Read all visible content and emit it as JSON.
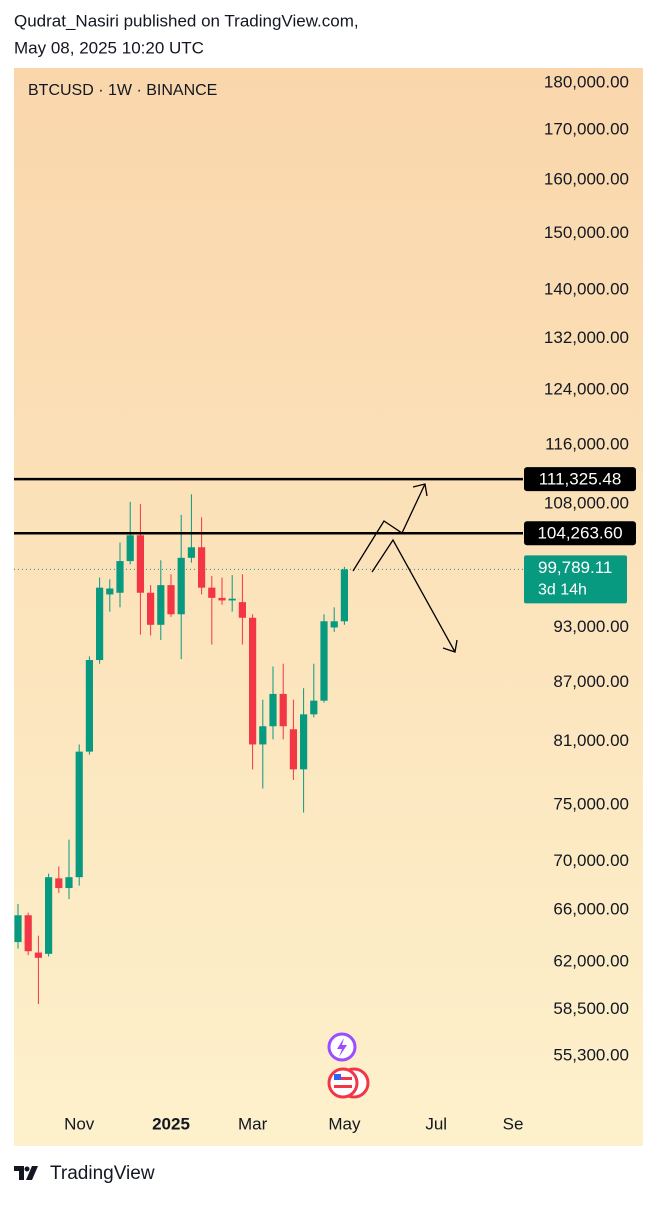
{
  "header": {
    "author_line": "Qudrat_Nasiri published on TradingView.com,",
    "date_line": "May 08, 2025 10:20 UTC"
  },
  "chart_data": {
    "type": "candlestick",
    "title": "BTCUSD · 1W · BINANCE",
    "categories": [
      null,
      null,
      null,
      null,
      null,
      null,
      "Nov",
      null,
      null,
      null,
      null,
      null,
      null,
      null,
      null,
      "2025",
      null,
      null,
      null,
      null,
      null,
      null,
      null,
      "Mar",
      null,
      null,
      null,
      null,
      null,
      null,
      null,
      null,
      "May",
      null,
      null,
      null,
      null,
      null,
      null,
      null,
      null,
      "Jul",
      null,
      null,
      null,
      null,
      null,
      null,
      null,
      "Sep"
    ],
    "open": [
      63500,
      65600,
      62700,
      62600,
      68600,
      67800,
      68700,
      80000,
      89400,
      96800,
      97000,
      100800,
      104000,
      97000,
      93300,
      97900,
      94500,
      101200,
      102500,
      97600,
      96400,
      96100,
      95900,
      94100,
      80700,
      82500,
      85800,
      82200,
      78300,
      83700,
      85100,
      93000,
      93700,
      null,
      null,
      null,
      null,
      null,
      null,
      null,
      null,
      null,
      null,
      null,
      null,
      null,
      null,
      null,
      null,
      null
    ],
    "high": [
      66500,
      65800,
      64000,
      69000,
      69600,
      71900,
      80700,
      89800,
      98800,
      98600,
      103100,
      108300,
      108000,
      97900,
      100900,
      99200,
      106600,
      109300,
      106300,
      99000,
      98800,
      99100,
      99200,
      94500,
      85200,
      88700,
      89000,
      85200,
      86400,
      89000,
      94500,
      95300,
      100100,
      null,
      null,
      null,
      null,
      null,
      null,
      null,
      null,
      null,
      null,
      null,
      null,
      null,
      null,
      null,
      null,
      null
    ],
    "low": [
      63000,
      62500,
      58900,
      62400,
      67400,
      66900,
      68000,
      79700,
      89000,
      94800,
      95300,
      100400,
      92200,
      92100,
      91600,
      94200,
      89500,
      100600,
      96800,
      91100,
      95600,
      94800,
      91100,
      78300,
      76500,
      81200,
      81200,
      77300,
      74300,
      83400,
      84900,
      92500,
      93300,
      null,
      null,
      null,
      null,
      null,
      null,
      null,
      null,
      null,
      null,
      null,
      null,
      null,
      null,
      null,
      null,
      null
    ],
    "close": [
      65600,
      62800,
      62300,
      68700,
      67800,
      68700,
      80000,
      89400,
      97600,
      97500,
      100800,
      104000,
      97000,
      93300,
      97900,
      94500,
      101200,
      102500,
      97600,
      96400,
      96100,
      96300,
      94100,
      80700,
      82500,
      85800,
      82500,
      78300,
      83700,
      85100,
      93700,
      93700,
      99789.11,
      null,
      null,
      null,
      null,
      null,
      null,
      null,
      null,
      null,
      null,
      null,
      null,
      null,
      null,
      null,
      null,
      null
    ],
    "up_color": "#089981",
    "down_color": "#f23645",
    "log_scale": true,
    "ylim": [
      51800,
      183300
    ],
    "yticks": [
      {
        "value": 180000,
        "label": "180,000.00"
      },
      {
        "value": 170000,
        "label": "170,000.00"
      },
      {
        "value": 160000,
        "label": "160,000.00"
      },
      {
        "value": 150000,
        "label": "150,000.00"
      },
      {
        "value": 140000,
        "label": "140,000.00"
      },
      {
        "value": 132000,
        "label": "132,000.00"
      },
      {
        "value": 124000,
        "label": "124,000.00"
      },
      {
        "value": 116000,
        "label": "116,000.00"
      },
      {
        "value": 108000,
        "label": "108,000.00"
      },
      {
        "value": 93000,
        "label": "93,000.00"
      },
      {
        "value": 87000,
        "label": "87,000.00"
      },
      {
        "value": 81000,
        "label": "81,000.00"
      },
      {
        "value": 75000,
        "label": "75,000.00"
      },
      {
        "value": 70000,
        "label": "70,000.00"
      },
      {
        "value": 66000,
        "label": "66,000.00"
      },
      {
        "value": 62000,
        "label": "62,000.00"
      },
      {
        "value": 58500,
        "label": "58,500.00"
      },
      {
        "value": 55300,
        "label": "55,300.00"
      }
    ],
    "horizontal_lines": [
      {
        "value": 111325.48,
        "label": "111,325.48"
      },
      {
        "value": 104263.6,
        "label": "104,263.60"
      }
    ],
    "last_price": {
      "value": 99789.11,
      "label": "99,789.11",
      "countdown": "3d 14h"
    }
  },
  "footer": {
    "brand": "TradingView"
  }
}
